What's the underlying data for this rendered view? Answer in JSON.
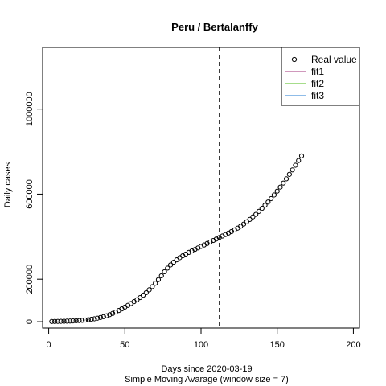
{
  "chart_data": {
    "type": "scatter",
    "title": "Peru / Bertalanffy",
    "xlabel": "Days since 2020-03-19",
    "xlabel2": "Simple Moving Avarage (window size = 7)",
    "ylabel": "Daily cases",
    "xlim": [
      -4,
      204
    ],
    "ylim": [
      -30000,
      1290000
    ],
    "x_ticks": [
      0,
      50,
      100,
      150,
      200
    ],
    "x_tick_labels": [
      "0",
      "50",
      "100",
      "150",
      "200"
    ],
    "y_ticks": [
      0,
      200000,
      600000,
      1000000
    ],
    "y_tick_labels": [
      "0",
      "200000",
      "600000",
      "1000000"
    ],
    "vline_x": 112,
    "grid": false,
    "legend_position": "top-right",
    "legend": [
      {
        "label": "Real value",
        "kind": "point",
        "color": "#000000"
      },
      {
        "label": "fit1",
        "kind": "line",
        "color": "#A0307A"
      },
      {
        "label": "fit2",
        "kind": "line",
        "color": "#4CBB17"
      },
      {
        "label": "fit3",
        "kind": "line",
        "color": "#1F78D1"
      }
    ],
    "series": [
      {
        "name": "Real value",
        "marker": "circle-open",
        "color": "#000000",
        "x": [
          2,
          4,
          6,
          8,
          10,
          12,
          14,
          16,
          18,
          20,
          22,
          24,
          26,
          28,
          30,
          32,
          34,
          36,
          38,
          40,
          42,
          44,
          46,
          48,
          50,
          52,
          54,
          56,
          58,
          60,
          62,
          64,
          66,
          68,
          70,
          72,
          74,
          76,
          78,
          80,
          82,
          84,
          86,
          88,
          90,
          92,
          94,
          96,
          98,
          100,
          102,
          104,
          106,
          108,
          110,
          112,
          114,
          116,
          118,
          120,
          122,
          124,
          126,
          128,
          130,
          132,
          134,
          136,
          138,
          140,
          142,
          144,
          146,
          148,
          150,
          152,
          154,
          156,
          158,
          160,
          162,
          164,
          166
        ],
        "y": [
          1000,
          1200,
          1500,
          1800,
          2100,
          2500,
          3000,
          3600,
          4300,
          5200,
          6300,
          7700,
          9300,
          11300,
          13600,
          16400,
          19700,
          23600,
          28000,
          33200,
          39000,
          45500,
          52600,
          60300,
          68400,
          76800,
          85500,
          94300,
          103400,
          113500,
          124600,
          136600,
          150000,
          165000,
          181000,
          198000,
          216000,
          235000,
          252000,
          267000,
          280000,
          291000,
          301000,
          310000,
          318000,
          326000,
          333000,
          340000,
          347000,
          354000,
          361000,
          368000,
          375000,
          382000,
          389000,
          396000,
          403000,
          410000,
          417000,
          424000,
          432000,
          440000,
          449000,
          459000,
          470000,
          481000,
          493000,
          505000,
          519000,
          533000,
          548000,
          563000,
          579000,
          596000,
          614000,
          633000,
          652000,
          672000,
          693000,
          714000,
          736000,
          758000,
          780000
        ]
      }
    ]
  }
}
